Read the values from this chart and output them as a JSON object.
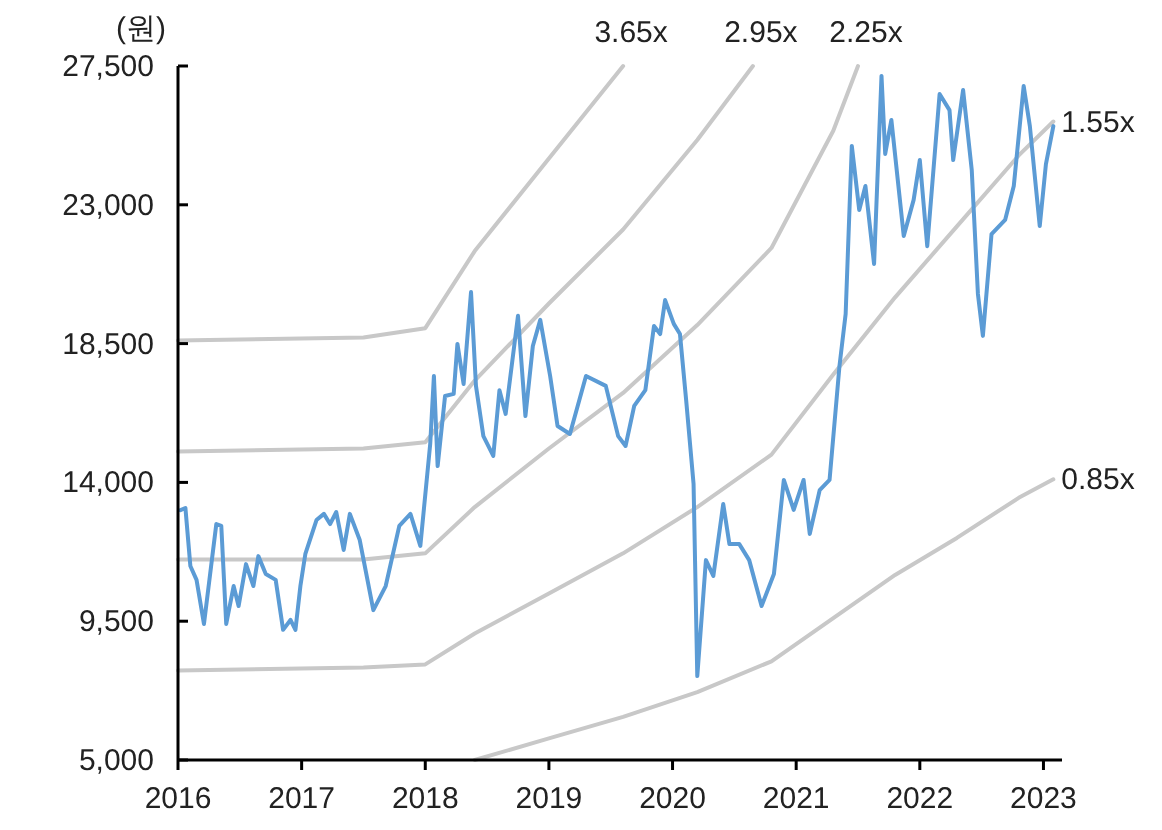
{
  "chart_data": {
    "type": "line",
    "ylabel": "(원)",
    "xlim": [
      2016,
      2023.15
    ],
    "ylim": [
      5000,
      27500
    ],
    "xticks": [
      2016,
      2017,
      2018,
      2019,
      2020,
      2021,
      2022,
      2023
    ],
    "yticks": [
      {
        "value": 5000,
        "label": "5,000"
      },
      {
        "value": 9500,
        "label": "9,500"
      },
      {
        "value": 14000,
        "label": "14,000"
      },
      {
        "value": 18500,
        "label": "18,500"
      },
      {
        "value": 23000,
        "label": "23,000"
      },
      {
        "value": 27500,
        "label": "27,500"
      }
    ],
    "grid": false,
    "series": [
      {
        "name": "3.65x",
        "color": "#c8c8c8",
        "x": [
          2016,
          2017.5,
          2018,
          2018.4,
          2019,
          2019.6
        ],
        "values": [
          18600,
          18700,
          19000,
          21500,
          24500,
          27500
        ]
      },
      {
        "name": "2.95x",
        "color": "#c8c8c8",
        "x": [
          2016,
          2017.5,
          2018,
          2018.4,
          2019,
          2019.6,
          2020.2,
          2020.65
        ],
        "values": [
          15000,
          15100,
          15300,
          17300,
          19800,
          22200,
          25100,
          27500
        ]
      },
      {
        "name": "2.25x",
        "color": "#c8c8c8",
        "x": [
          2016,
          2017.5,
          2018,
          2018.4,
          2019,
          2019.6,
          2020.2,
          2020.8,
          2021.3,
          2021.5
        ],
        "values": [
          11500,
          11500,
          11700,
          13200,
          15100,
          16900,
          19100,
          21600,
          25400,
          27500
        ]
      },
      {
        "name": "1.55x",
        "color": "#c8c8c8",
        "x": [
          2016,
          2017.5,
          2018,
          2018.4,
          2019,
          2019.6,
          2020.2,
          2020.8,
          2021.3,
          2021.8,
          2022.3,
          2022.8,
          2023.08
        ],
        "values": [
          7900,
          8000,
          8100,
          9100,
          10400,
          11700,
          13200,
          14900,
          17500,
          20000,
          22300,
          24600,
          25700
        ]
      },
      {
        "name": "0.85x",
        "color": "#c8c8c8",
        "x": [
          2018.4,
          2019,
          2019.6,
          2020.2,
          2020.8,
          2021.3,
          2021.8,
          2022.3,
          2022.8,
          2023.08
        ],
        "values": [
          5000,
          5700,
          6400,
          7200,
          8200,
          9600,
          11000,
          12200,
          13500,
          14100
        ]
      },
      {
        "color": "#5b9bd5",
        "x": [
          2016.02,
          2016.06,
          2016.1,
          2016.15,
          2016.21,
          2016.26,
          2016.31,
          2016.35,
          2016.39,
          2016.45,
          2016.49,
          2016.55,
          2016.61,
          2016.65,
          2016.71,
          2016.79,
          2016.85,
          2016.91,
          2016.95,
          2016.99,
          2017.03,
          2017.12,
          2017.18,
          2017.23,
          2017.28,
          2017.34,
          2017.39,
          2017.47,
          2017.58,
          2017.68,
          2017.79,
          2017.88,
          2017.96,
          2018.04,
          2018.07,
          2018.1,
          2018.16,
          2018.23,
          2018.26,
          2018.31,
          2018.37,
          2018.41,
          2018.47,
          2018.55,
          2018.6,
          2018.65,
          2018.75,
          2018.81,
          2018.87,
          2018.93,
          2019.01,
          2019.07,
          2019.17,
          2019.3,
          2019.46,
          2019.56,
          2019.62,
          2019.69,
          2019.78,
          2019.85,
          2019.9,
          2019.94,
          2020.01,
          2020.06,
          2020.11,
          2020.17,
          2020.2,
          2020.27,
          2020.33,
          2020.41,
          2020.46,
          2020.54,
          2020.62,
          2020.72,
          2020.82,
          2020.9,
          2020.98,
          2021.06,
          2021.11,
          2021.19,
          2021.27,
          2021.35,
          2021.4,
          2021.45,
          2021.51,
          2021.56,
          2021.63,
          2021.69,
          2021.72,
          2021.77,
          2021.87,
          2021.95,
          2022.0,
          2022.06,
          2022.16,
          2022.24,
          2022.27,
          2022.35,
          2022.42,
          2022.47,
          2022.51,
          2022.58,
          2022.69,
          2022.76,
          2022.84,
          2022.89,
          2022.97,
          2023.02,
          2023.08
        ],
        "values": [
          13100,
          13170,
          11290,
          10840,
          9410,
          11030,
          12650,
          12590,
          9410,
          10640,
          9990,
          11350,
          10640,
          11610,
          11030,
          10840,
          9220,
          9540,
          9220,
          10640,
          11680,
          12780,
          12980,
          12650,
          13040,
          11810,
          12980,
          12130,
          9860,
          10640,
          12590,
          12980,
          11940,
          15250,
          17450,
          14530,
          16800,
          16870,
          18490,
          17190,
          20170,
          17130,
          15500,
          14860,
          16990,
          16220,
          19400,
          16150,
          18420,
          19270,
          17450,
          15830,
          15570,
          17450,
          17130,
          15500,
          15180,
          16480,
          16990,
          19070,
          18810,
          19910,
          19140,
          18810,
          16670,
          13950,
          7720,
          11480,
          10970,
          13300,
          12000,
          12000,
          11480,
          9990,
          11030,
          14080,
          13110,
          14080,
          12330,
          13750,
          14080,
          17770,
          19460,
          24910,
          22830,
          23610,
          21080,
          27180,
          24650,
          25750,
          21990,
          23160,
          24450,
          21660,
          26590,
          26070,
          24450,
          26720,
          24130,
          20110,
          18750,
          22050,
          22510,
          23610,
          26850,
          25550,
          22310,
          24320,
          25550
        ]
      }
    ]
  }
}
